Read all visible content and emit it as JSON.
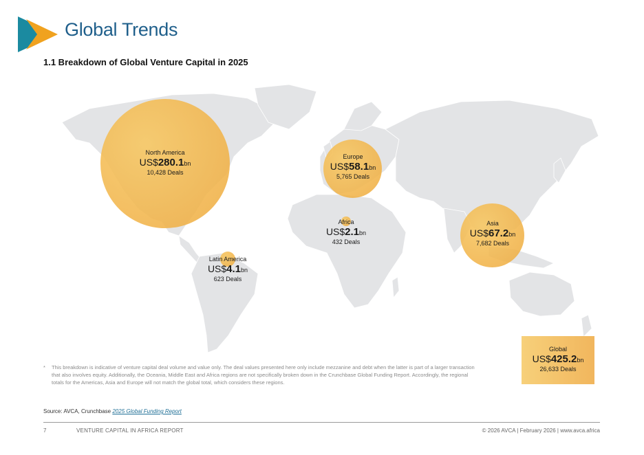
{
  "header": {
    "title": "Global Trends",
    "subtitle": "1.1 Breakdown of Global Venture Capital in 2025"
  },
  "colors": {
    "brand_blue": "#1f5f8b",
    "logo_orange": "#f0a21f",
    "logo_teal": "#1b8aa0",
    "bubble": "#f3bd55",
    "land": "#e3e4e6"
  },
  "regions": {
    "north_america": {
      "name": "North America",
      "prefix": "US$",
      "value": "280.1",
      "unit": "bn",
      "deals": "10,428 Deals"
    },
    "europe": {
      "name": "Europe",
      "prefix": "US$",
      "value": "58.1",
      "unit": "bn",
      "deals": "5,765 Deals"
    },
    "africa": {
      "name": "Africa",
      "prefix": "US$",
      "value": "2.1",
      "unit": "bn",
      "deals": "432 Deals"
    },
    "asia": {
      "name": "Asia",
      "prefix": "US$",
      "value": "67.2",
      "unit": "bn",
      "deals": "7,682 Deals"
    },
    "latin_america": {
      "name": "Latin America",
      "prefix": "US$",
      "value": "4.1",
      "unit": "bn",
      "deals": "623 Deals"
    },
    "global": {
      "name": "Global",
      "prefix": "US$",
      "value": "425.2",
      "unit": "bn",
      "deals": "26,633 Deals"
    }
  },
  "footnote": {
    "marker": "*",
    "text": "This breakdown is indicative of venture capital deal volume and value only. The deal values presented here only include mezzanine and debt when the latter is part of a larger transaction that also involves equity. Additionally, the Oceania, Middle East and Africa regions are not specifically broken down in the Crunchbase Global Funding Report. Accordingly, the regional totals for the Americas, Asia and Europe will not match the global total, which considers these regions."
  },
  "source": {
    "label": "Source: AVCA, Crunchbase ",
    "link": "2025 Global Funding Report"
  },
  "footer": {
    "page": "7",
    "report": "VENTURE CAPITAL IN AFRICA REPORT",
    "copyright": "© 2026 AVCA | February 2026 | www.avca.africa"
  }
}
